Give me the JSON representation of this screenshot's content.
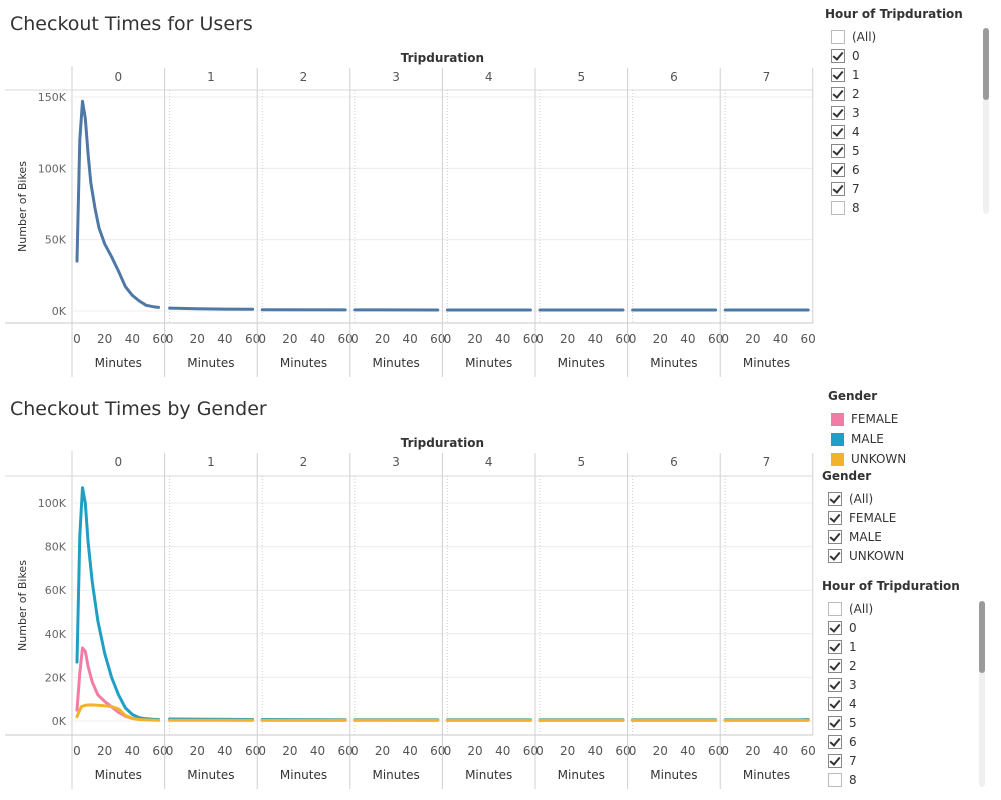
{
  "chart_data": [
    {
      "type": "line",
      "title": "Checkout Times for Users",
      "column_header": "Tripduration",
      "panes": [
        "0",
        "1",
        "2",
        "3",
        "4",
        "5",
        "6",
        "7"
      ],
      "xlabel": "Minutes",
      "ylabel": "Number of Bikes",
      "x_ticks": [
        "0",
        "20",
        "40",
        "60"
      ],
      "xlim": [
        0,
        60
      ],
      "y_ticks": [
        {
          "value": 0,
          "label": "0K"
        },
        {
          "value": 50000,
          "label": "50K"
        },
        {
          "value": 100000,
          "label": "100K"
        },
        {
          "value": 150000,
          "label": "150K"
        }
      ],
      "ylim": [
        0,
        160000
      ],
      "grid": true,
      "series": [
        {
          "color": "#4e79a7",
          "pane_values": [
            {
              "x": [
                0,
                2,
                4,
                6,
                8,
                10,
                13,
                16,
                20,
                25,
                30,
                35,
                40,
                45,
                50,
                55,
                59
              ],
              "y": [
                35000,
                120000,
                147000,
                135000,
                110000,
                90000,
                72000,
                58000,
                47000,
                38000,
                28000,
                17000,
                11000,
                7000,
                4000,
                3000,
                2500
              ]
            },
            {
              "x": [
                0,
                20,
                40,
                60
              ],
              "y": [
                2000,
                1600,
                1300,
                1200
              ]
            },
            {
              "x": [
                0,
                60
              ],
              "y": [
                900,
                800
              ]
            },
            {
              "x": [
                0,
                60
              ],
              "y": [
                800,
                700
              ]
            },
            {
              "x": [
                0,
                60
              ],
              "y": [
                700,
                700
              ]
            },
            {
              "x": [
                0,
                60
              ],
              "y": [
                700,
                700
              ]
            },
            {
              "x": [
                0,
                60
              ],
              "y": [
                700,
                700
              ]
            },
            {
              "x": [
                0,
                60
              ],
              "y": [
                700,
                700
              ]
            }
          ]
        }
      ]
    },
    {
      "type": "line",
      "title": "Checkout Times by Gender",
      "column_header": "Tripduration",
      "panes": [
        "0",
        "1",
        "2",
        "3",
        "4",
        "5",
        "6",
        "7"
      ],
      "xlabel": "Minutes",
      "ylabel": "Number of Bikes",
      "x_ticks": [
        "0",
        "20",
        "40",
        "60"
      ],
      "xlim": [
        0,
        60
      ],
      "y_ticks": [
        {
          "value": 0,
          "label": "0K"
        },
        {
          "value": 20000,
          "label": "20K"
        },
        {
          "value": 40000,
          "label": "40K"
        },
        {
          "value": 60000,
          "label": "60K"
        },
        {
          "value": 80000,
          "label": "80K"
        },
        {
          "value": 100000,
          "label": "100K"
        }
      ],
      "ylim": [
        0,
        112000
      ],
      "grid": true,
      "series": [
        {
          "name": "FEMALE",
          "color": "#f17ca6",
          "pane_values": [
            {
              "x": [
                0,
                2,
                4,
                6,
                8,
                11,
                15,
                20,
                25,
                30,
                35,
                40,
                45,
                50,
                55,
                59
              ],
              "y": [
                5000,
                22000,
                33500,
                32000,
                25000,
                18000,
                12000,
                9000,
                6500,
                4000,
                2200,
                1200,
                800,
                600,
                500,
                400
              ]
            },
            {
              "x": [
                0,
                60
              ],
              "y": [
                500,
                400
              ]
            },
            {
              "x": [
                0,
                60
              ],
              "y": [
                400,
                350
              ]
            },
            {
              "x": [
                0,
                60
              ],
              "y": [
                400,
                350
              ]
            },
            {
              "x": [
                0,
                60
              ],
              "y": [
                350,
                350
              ]
            },
            {
              "x": [
                0,
                60
              ],
              "y": [
                350,
                350
              ]
            },
            {
              "x": [
                0,
                60
              ],
              "y": [
                350,
                350
              ]
            },
            {
              "x": [
                0,
                60
              ],
              "y": [
                350,
                350
              ]
            }
          ]
        },
        {
          "name": "MALE",
          "color": "#1f9fc4",
          "pane_values": [
            {
              "x": [
                0,
                2,
                4,
                6,
                8,
                11,
                15,
                20,
                25,
                30,
                35,
                40,
                45,
                50,
                55,
                59
              ],
              "y": [
                27000,
                85000,
                107000,
                100000,
                82000,
                64000,
                46000,
                31000,
                20000,
                12000,
                6000,
                3000,
                1500,
                1000,
                800,
                700
              ]
            },
            {
              "x": [
                0,
                60
              ],
              "y": [
                900,
                700
              ]
            },
            {
              "x": [
                0,
                60
              ],
              "y": [
                700,
                600
              ]
            },
            {
              "x": [
                0,
                60
              ],
              "y": [
                600,
                600
              ]
            },
            {
              "x": [
                0,
                60
              ],
              "y": [
                600,
                600
              ]
            },
            {
              "x": [
                0,
                60
              ],
              "y": [
                600,
                600
              ]
            },
            {
              "x": [
                0,
                60
              ],
              "y": [
                600,
                600
              ]
            },
            {
              "x": [
                0,
                55,
                60
              ],
              "y": [
                600,
                600,
                700
              ]
            }
          ]
        },
        {
          "name": "UNKOWN",
          "color": "#f2b22c",
          "pane_values": [
            {
              "x": [
                0,
                3,
                6,
                10,
                15,
                20,
                25,
                30,
                35,
                40,
                45,
                50,
                55,
                59
              ],
              "y": [
                2000,
                6500,
                7200,
                7400,
                7200,
                7000,
                6600,
                5500,
                2500,
                1200,
                700,
                500,
                400,
                300
              ]
            },
            {
              "x": [
                0,
                60
              ],
              "y": [
                300,
                300
              ]
            },
            {
              "x": [
                0,
                60
              ],
              "y": [
                300,
                300
              ]
            },
            {
              "x": [
                0,
                60
              ],
              "y": [
                300,
                300
              ]
            },
            {
              "x": [
                0,
                60
              ],
              "y": [
                300,
                300
              ]
            },
            {
              "x": [
                0,
                60
              ],
              "y": [
                300,
                300
              ]
            },
            {
              "x": [
                0,
                60
              ],
              "y": [
                300,
                300
              ]
            },
            {
              "x": [
                0,
                60
              ],
              "y": [
                300,
                300
              ]
            }
          ]
        }
      ]
    }
  ],
  "filter_top": {
    "title": "Hour of Tripduration",
    "items": [
      {
        "label": "(All)",
        "checked": false
      },
      {
        "label": "0",
        "checked": true
      },
      {
        "label": "1",
        "checked": true
      },
      {
        "label": "2",
        "checked": true
      },
      {
        "label": "3",
        "checked": true
      },
      {
        "label": "4",
        "checked": true
      },
      {
        "label": "5",
        "checked": true
      },
      {
        "label": "6",
        "checked": true
      },
      {
        "label": "7",
        "checked": true
      },
      {
        "label": "8",
        "checked": false
      }
    ]
  },
  "legend_gender": {
    "title": "Gender",
    "items": [
      {
        "label": "FEMALE",
        "color": "#f17ca6"
      },
      {
        "label": "MALE",
        "color": "#1f9fc4"
      },
      {
        "label": "UNKOWN",
        "color": "#f2b22c"
      }
    ]
  },
  "filter_gender": {
    "title": "Gender",
    "items": [
      {
        "label": "(All)",
        "checked": true
      },
      {
        "label": "FEMALE",
        "checked": true
      },
      {
        "label": "MALE",
        "checked": true
      },
      {
        "label": "UNKOWN",
        "checked": true
      }
    ]
  },
  "filter_bottom": {
    "title": "Hour of Tripduration",
    "items": [
      {
        "label": "(All)",
        "checked": false
      },
      {
        "label": "0",
        "checked": true
      },
      {
        "label": "1",
        "checked": true
      },
      {
        "label": "2",
        "checked": true
      },
      {
        "label": "3",
        "checked": true
      },
      {
        "label": "4",
        "checked": true
      },
      {
        "label": "5",
        "checked": true
      },
      {
        "label": "6",
        "checked": true
      },
      {
        "label": "7",
        "checked": true
      },
      {
        "label": "8",
        "checked": false
      }
    ]
  }
}
